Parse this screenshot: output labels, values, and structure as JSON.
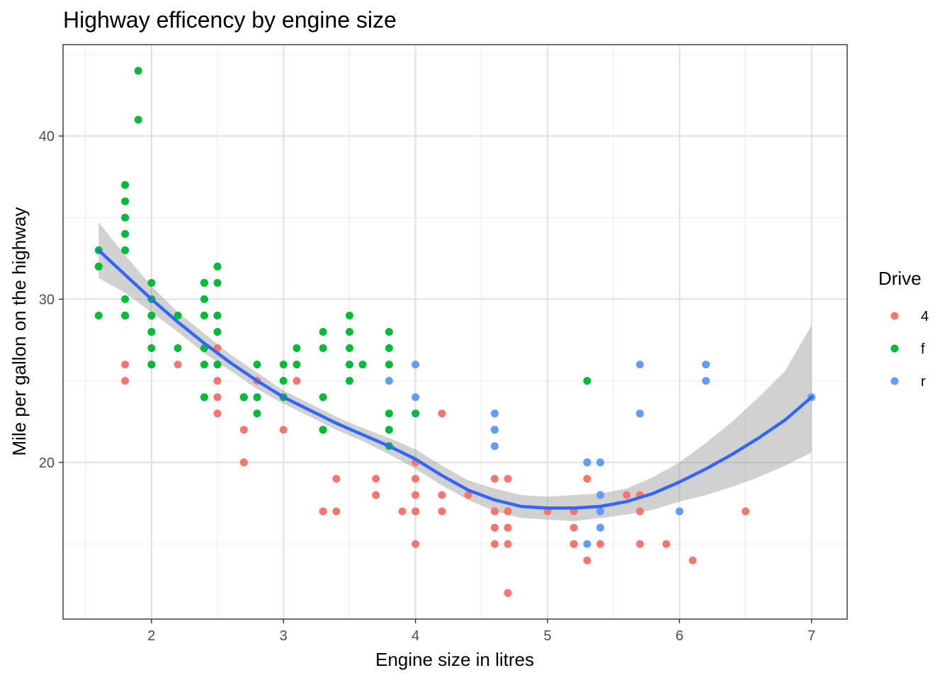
{
  "chart_data": {
    "type": "scatter",
    "title": "Highway efficency by engine size",
    "xlabel": "Engine size in litres",
    "ylabel": "Mile per gallon on the highway",
    "xlim": [
      1.33,
      7.27
    ],
    "ylim": [
      10.4,
      45.6
    ],
    "x_ticks": [
      2,
      3,
      4,
      5,
      6,
      7
    ],
    "y_ticks": [
      20,
      30,
      40
    ],
    "grid": true,
    "legend": {
      "title": "Drive",
      "position": "right"
    },
    "colors": {
      "4": "#F8766D",
      "f": "#00BA38",
      "r": "#619CFF",
      "smooth": "#3366FF",
      "band": "#999999"
    },
    "series": [
      {
        "name": "4",
        "points": [
          [
            1.8,
            26
          ],
          [
            1.8,
            25
          ],
          [
            2.2,
            26
          ],
          [
            2.5,
            27
          ],
          [
            2.5,
            26
          ],
          [
            2.5,
            25
          ],
          [
            2.5,
            24
          ],
          [
            2.5,
            23
          ],
          [
            2.7,
            22
          ],
          [
            2.7,
            20
          ],
          [
            2.7,
            20
          ],
          [
            2.8,
            25
          ],
          [
            3.0,
            22
          ],
          [
            3.1,
            25
          ],
          [
            3.3,
            17
          ],
          [
            3.3,
            17
          ],
          [
            3.4,
            19
          ],
          [
            3.4,
            17
          ],
          [
            3.7,
            19
          ],
          [
            3.7,
            18
          ],
          [
            3.9,
            17
          ],
          [
            4.0,
            20
          ],
          [
            4.0,
            19
          ],
          [
            4.0,
            19
          ],
          [
            4.0,
            18
          ],
          [
            4.0,
            17
          ],
          [
            4.0,
            17
          ],
          [
            4.0,
            15
          ],
          [
            4.2,
            23
          ],
          [
            4.2,
            18
          ],
          [
            4.2,
            17
          ],
          [
            4.4,
            18
          ],
          [
            4.6,
            19
          ],
          [
            4.6,
            17
          ],
          [
            4.6,
            17
          ],
          [
            4.6,
            16
          ],
          [
            4.6,
            16
          ],
          [
            4.6,
            15
          ],
          [
            4.7,
            19
          ],
          [
            4.7,
            17
          ],
          [
            4.7,
            17
          ],
          [
            4.7,
            16
          ],
          [
            4.7,
            16
          ],
          [
            4.7,
            15
          ],
          [
            4.7,
            12
          ],
          [
            4.7,
            12
          ],
          [
            5.0,
            17
          ],
          [
            5.2,
            17
          ],
          [
            5.2,
            16
          ],
          [
            5.2,
            15
          ],
          [
            5.2,
            15
          ],
          [
            5.3,
            19
          ],
          [
            5.3,
            14
          ],
          [
            5.4,
            18
          ],
          [
            5.4,
            17
          ],
          [
            5.4,
            15
          ],
          [
            5.6,
            18
          ],
          [
            5.7,
            18
          ],
          [
            5.7,
            17
          ],
          [
            5.7,
            15
          ],
          [
            5.9,
            15
          ],
          [
            6.1,
            14
          ],
          [
            6.5,
            17
          ]
        ]
      },
      {
        "name": "f",
        "points": [
          [
            1.6,
            33
          ],
          [
            1.6,
            32
          ],
          [
            1.6,
            32
          ],
          [
            1.6,
            29
          ],
          [
            1.8,
            37
          ],
          [
            1.8,
            36
          ],
          [
            1.8,
            35
          ],
          [
            1.8,
            34
          ],
          [
            1.8,
            33
          ],
          [
            1.8,
            30
          ],
          [
            1.8,
            29
          ],
          [
            1.8,
            29
          ],
          [
            1.9,
            44
          ],
          [
            1.9,
            41
          ],
          [
            2.0,
            31
          ],
          [
            2.0,
            30
          ],
          [
            2.0,
            29
          ],
          [
            2.0,
            29
          ],
          [
            2.0,
            28
          ],
          [
            2.0,
            28
          ],
          [
            2.0,
            27
          ],
          [
            2.0,
            26
          ],
          [
            2.0,
            26
          ],
          [
            2.2,
            29
          ],
          [
            2.2,
            27
          ],
          [
            2.4,
            31
          ],
          [
            2.4,
            31
          ],
          [
            2.4,
            30
          ],
          [
            2.4,
            29
          ],
          [
            2.4,
            27
          ],
          [
            2.4,
            26
          ],
          [
            2.4,
            24
          ],
          [
            2.5,
            32
          ],
          [
            2.5,
            31
          ],
          [
            2.5,
            29
          ],
          [
            2.5,
            29
          ],
          [
            2.5,
            28
          ],
          [
            2.5,
            26
          ],
          [
            2.7,
            24
          ],
          [
            2.7,
            24
          ],
          [
            2.8,
            26
          ],
          [
            2.8,
            24
          ],
          [
            2.8,
            23
          ],
          [
            3.0,
            26
          ],
          [
            3.0,
            25
          ],
          [
            3.0,
            24
          ],
          [
            3.1,
            27
          ],
          [
            3.1,
            26
          ],
          [
            3.3,
            28
          ],
          [
            3.3,
            27
          ],
          [
            3.3,
            24
          ],
          [
            3.3,
            22
          ],
          [
            3.3,
            22
          ],
          [
            3.5,
            29
          ],
          [
            3.5,
            28
          ],
          [
            3.5,
            27
          ],
          [
            3.5,
            26
          ],
          [
            3.5,
            25
          ],
          [
            3.6,
            26
          ],
          [
            3.8,
            28
          ],
          [
            3.8,
            27
          ],
          [
            3.8,
            26
          ],
          [
            3.8,
            23
          ],
          [
            3.8,
            22
          ],
          [
            3.8,
            21
          ],
          [
            4.0,
            23
          ],
          [
            5.3,
            25
          ]
        ]
      },
      {
        "name": "r",
        "points": [
          [
            3.8,
            25
          ],
          [
            4.0,
            26
          ],
          [
            4.0,
            24
          ],
          [
            4.6,
            23
          ],
          [
            4.6,
            22
          ],
          [
            4.6,
            22
          ],
          [
            4.6,
            21
          ],
          [
            5.3,
            20
          ],
          [
            5.3,
            20
          ],
          [
            5.3,
            15
          ],
          [
            5.4,
            20
          ],
          [
            5.4,
            18
          ],
          [
            5.4,
            17
          ],
          [
            5.4,
            16
          ],
          [
            5.7,
            26
          ],
          [
            5.7,
            23
          ],
          [
            6.0,
            17
          ],
          [
            6.2,
            26
          ],
          [
            6.2,
            25
          ],
          [
            7.0,
            24
          ]
        ]
      }
    ],
    "smooth": {
      "x": [
        1.6,
        1.8,
        2.0,
        2.2,
        2.4,
        2.6,
        2.8,
        3.0,
        3.2,
        3.4,
        3.6,
        3.8,
        4.0,
        4.2,
        4.4,
        4.6,
        4.8,
        5.0,
        5.2,
        5.4,
        5.6,
        5.8,
        6.0,
        6.2,
        6.4,
        6.6,
        6.8,
        7.0
      ],
      "y": [
        33.0,
        31.5,
        30.0,
        28.6,
        27.3,
        26.1,
        25.0,
        24.0,
        23.2,
        22.4,
        21.7,
        21.0,
        20.2,
        19.2,
        18.3,
        17.7,
        17.3,
        17.2,
        17.2,
        17.3,
        17.6,
        18.1,
        18.8,
        19.6,
        20.5,
        21.5,
        22.6,
        24.0
      ],
      "ymin": [
        31.3,
        30.4,
        29.2,
        28.0,
        26.7,
        25.6,
        24.5,
        23.6,
        22.8,
        22.0,
        21.3,
        20.5,
        19.6,
        18.6,
        17.7,
        17.0,
        16.6,
        16.5,
        16.4,
        16.6,
        16.8,
        17.1,
        17.6,
        18.0,
        18.5,
        19.1,
        19.8,
        20.6
      ],
      "ymax": [
        34.7,
        32.7,
        30.8,
        29.2,
        27.9,
        26.6,
        25.5,
        24.4,
        23.6,
        22.8,
        22.1,
        21.5,
        20.8,
        19.8,
        18.9,
        18.4,
        18.0,
        17.9,
        18.0,
        18.1,
        18.4,
        19.1,
        20.0,
        21.2,
        22.5,
        24.0,
        25.6,
        28.4
      ]
    }
  }
}
